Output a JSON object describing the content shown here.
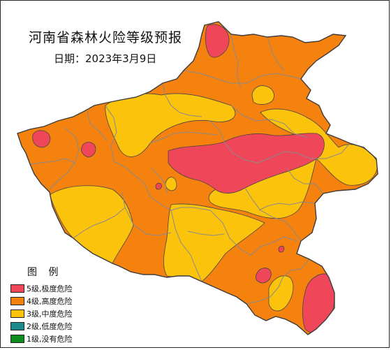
{
  "map": {
    "title": "河南省森林火险等级预报",
    "date_line": "日期：2023年3月9日"
  },
  "legend": {
    "title": "图 例",
    "items": [
      {
        "label": "5级,极度危险",
        "color": "#f0465a"
      },
      {
        "label": "4级,高度危险",
        "color": "#f5820f"
      },
      {
        "label": "3级,中度危险",
        "color": "#fcc30c"
      },
      {
        "label": "2级,低度危险",
        "color": "#1f8a8a"
      },
      {
        "label": "1级,没有危险",
        "color": "#0f8c1e"
      }
    ]
  },
  "colors": {
    "border": "#3c3c3c",
    "county_lines": "#8a8a8a"
  }
}
